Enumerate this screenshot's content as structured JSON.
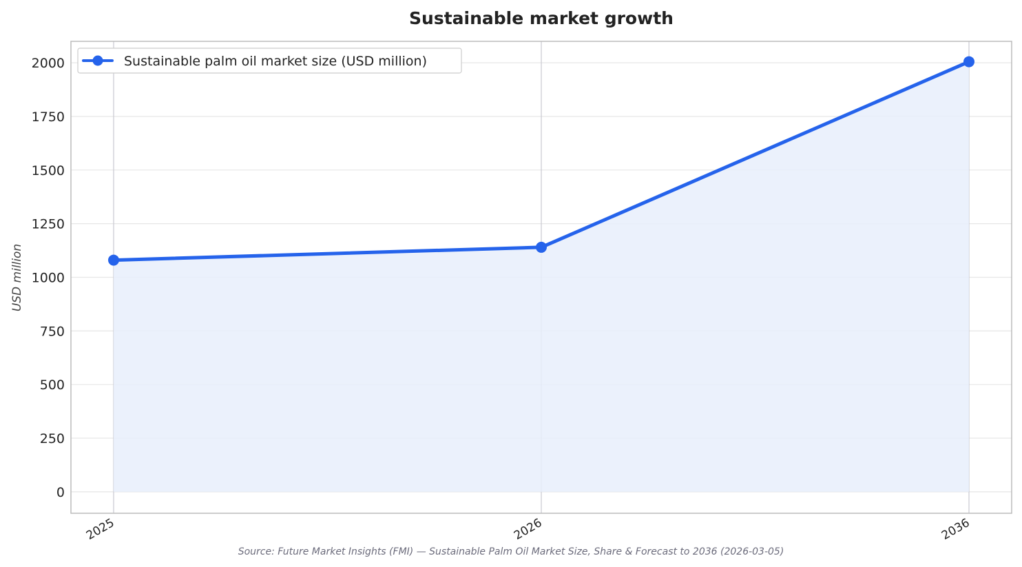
{
  "chart_data": {
    "type": "line",
    "title": "Sustainable market growth",
    "xlabel": "",
    "ylabel": "USD million",
    "categories": [
      "2025",
      "2026",
      "2036"
    ],
    "series": [
      {
        "name": "Sustainable palm oil market size (USD million)",
        "values": [
          1080,
          1140,
          2005
        ]
      }
    ],
    "ylim": [
      -100,
      2100
    ],
    "yticks": [
      0,
      250,
      500,
      750,
      1000,
      1250,
      1500,
      1750,
      2000
    ],
    "grid": true,
    "legend_position": "top-left",
    "area_fill": true,
    "source": "Source: Future Market Insights (FMI) — Sustainable Palm Oil Market Size, Share & Forecast to 2036 (2026-03-05)"
  },
  "colors": {
    "line": "#2563eb",
    "fill": "#e8eefb",
    "grid": "#e6e6e6",
    "frame": "#bbbbbb",
    "vgrid": "#c8c8d0"
  }
}
